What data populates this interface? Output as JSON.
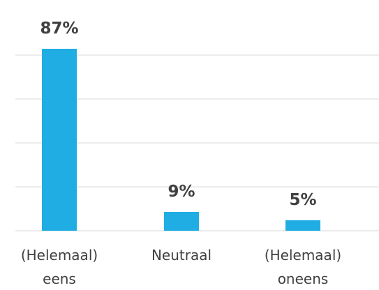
{
  "chart_data": {
    "type": "bar",
    "categories": [
      [
        "(Helemaal)",
        "eens"
      ],
      [
        "Neutraal"
      ],
      [
        "(Helemaal)",
        "oneens"
      ]
    ],
    "values": [
      87,
      9,
      5
    ],
    "data_labels": [
      "87%",
      "9%",
      "5%"
    ],
    "ylim": [
      0,
      90
    ],
    "grid": true,
    "bar_color": "#1fade4",
    "title": "",
    "xlabel": "",
    "ylabel": ""
  }
}
